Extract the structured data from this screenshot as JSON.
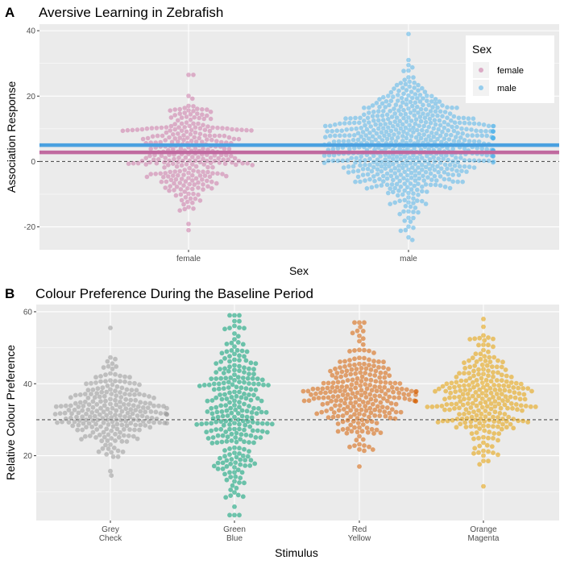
{
  "chart_data": [
    {
      "panel_label": "A",
      "type": "beeswarm",
      "title": "Aversive Learning in Zebrafish",
      "xlabel": "Sex",
      "ylabel": "Association Response",
      "categories": [
        "female",
        "male"
      ],
      "ylim": [
        -27,
        42
      ],
      "yticks": [
        -20,
        0,
        20,
        40
      ],
      "ytick_labels": [
        "-20",
        "0",
        "20",
        "40"
      ],
      "grid": true,
      "reference_line": {
        "y": 0,
        "style": "dashed",
        "color": "#555555"
      },
      "mean_lines": [
        {
          "category": "female",
          "y": 2.8,
          "color": "#c0699f"
        },
        {
          "category": "male",
          "y": 5.0,
          "color": "#4aa0e0"
        }
      ],
      "legend": {
        "title": "Sex",
        "position": "top-right",
        "entries": [
          {
            "label": "female",
            "color": "#cc79a7"
          },
          {
            "label": "male",
            "color": "#56b4e9"
          }
        ]
      },
      "series": [
        {
          "category": "female",
          "color": "#cc79a7",
          "n": 290,
          "mean": 2.8,
          "sd": 7.5,
          "min": -21,
          "max": 26.5
        },
        {
          "category": "male",
          "color": "#56b4e9",
          "n": 640,
          "mean": 5.0,
          "sd": 9.0,
          "min": -24,
          "max": 39
        }
      ]
    },
    {
      "panel_label": "B",
      "type": "beeswarm",
      "title": "Colour Preference During the Baseline Period",
      "xlabel": "Stimulus",
      "ylabel": "Relative Colour Preference",
      "categories": [
        "Grey\nCheck",
        "Green\nBlue",
        "Red\nYellow",
        "Orange\nMagenta"
      ],
      "ylim": [
        2,
        62
      ],
      "yticks": [
        20,
        40,
        60
      ],
      "ytick_labels": [
        "20",
        "40",
        "60"
      ],
      "grid": true,
      "reference_line": {
        "y": 30,
        "style": "dashed",
        "color": "#555555"
      },
      "series": [
        {
          "category": "Grey Check",
          "color": "#999999",
          "n": 240,
          "mean": 32,
          "sd": 5.5,
          "min": 14.5,
          "max": 55.5
        },
        {
          "category": "Green Blue",
          "color": "#009e73",
          "n": 260,
          "mean": 33,
          "sd": 12,
          "min": 3.5,
          "max": 59
        },
        {
          "category": "Red Yellow",
          "color": "#d55e00",
          "n": 260,
          "mean": 37,
          "sd": 7,
          "min": 17,
          "max": 57
        },
        {
          "category": "Orange Magenta",
          "color": "#e69f00",
          "n": 260,
          "mean": 36,
          "sd": 7.5,
          "min": 11.5,
          "max": 58
        }
      ]
    }
  ]
}
